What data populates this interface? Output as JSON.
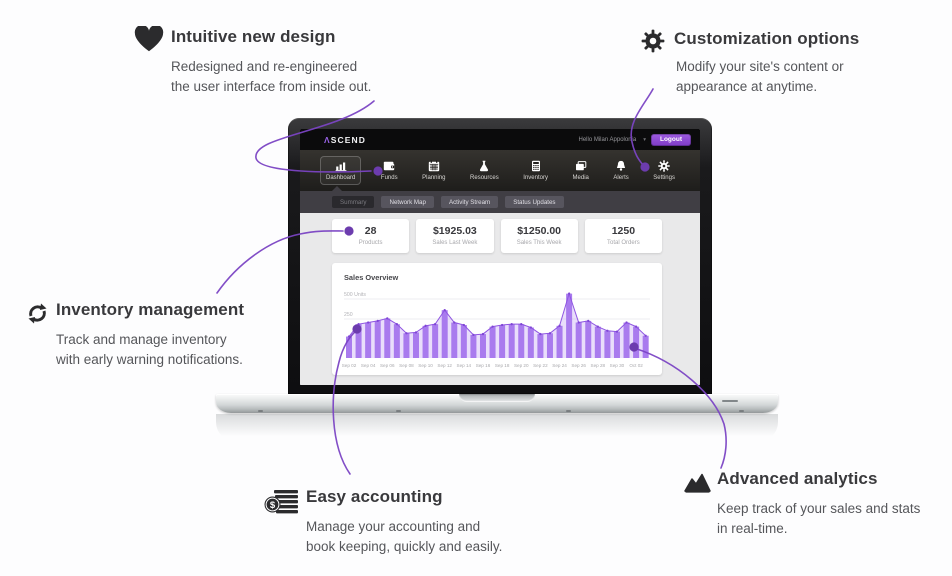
{
  "features": {
    "intuitive": {
      "title": "Intuitive new design",
      "desc": [
        "Redesigned and re-engineered",
        "the user interface from inside out."
      ]
    },
    "customization": {
      "title": "Customization options",
      "desc": [
        "Modify your site's content or",
        "appearance at anytime."
      ]
    },
    "inventory": {
      "title": "Inventory management",
      "desc": [
        "Track and manage inventory",
        "with early warning notifications."
      ]
    },
    "accounting": {
      "title": "Easy accounting",
      "desc": [
        "Manage your accounting and",
        "book keeping, quickly and easily."
      ],
      "icon_symbol": "$"
    },
    "analytics": {
      "title": "Advanced analytics",
      "desc": [
        "Keep track of your sales and stats",
        "in real-time."
      ]
    }
  },
  "dashboard": {
    "logo": {
      "prefix": "Λ",
      "rest": "SCEND"
    },
    "user": {
      "greeting": "Hello Milan Appolonia",
      "caret": "▾",
      "logout_label": "Logout"
    },
    "nav": [
      {
        "label": "Dashboard",
        "icon": "bar-chart",
        "active": true
      },
      {
        "label": "Funds",
        "icon": "wallet",
        "active": false
      },
      {
        "label": "Planning",
        "icon": "calendar",
        "active": false
      },
      {
        "label": "Resources",
        "icon": "flask",
        "active": false
      },
      {
        "label": "Inventory",
        "icon": "calculator",
        "active": false
      },
      {
        "label": "Media",
        "icon": "photos",
        "active": false
      },
      {
        "label": "Alerts",
        "icon": "bell",
        "active": false
      },
      {
        "label": "Settings",
        "icon": "gear",
        "active": false
      }
    ],
    "tabs": [
      {
        "label": "Summary",
        "active": true
      },
      {
        "label": "Network Map",
        "active": false
      },
      {
        "label": "Activity Stream",
        "active": false
      },
      {
        "label": "Status Updates",
        "active": false
      }
    ],
    "stats": [
      {
        "value": "28",
        "label": "Products"
      },
      {
        "value": "$1925.03",
        "label": "Sales Last Week"
      },
      {
        "value": "$1250.00",
        "label": "Sales This Week"
      },
      {
        "value": "1250",
        "label": "Total Orders"
      }
    ]
  },
  "chart_data": {
    "type": "bar",
    "title": "Sales Overview",
    "ylabel": "Units",
    "ylim": [
      0,
      500
    ],
    "y_ticks": [
      "500 Units",
      "250"
    ],
    "x_labels": [
      "Sep 02",
      "Sep 04",
      "Sep 06",
      "Sep 08",
      "Sep 10",
      "Sep 12",
      "Sep 14",
      "Sep 16",
      "Sep 18",
      "Sep 20",
      "Sep 22",
      "Sep 24",
      "Sep 26",
      "Sep 28",
      "Sep 30",
      "Oct 02"
    ],
    "values": [
      130,
      205,
      215,
      225,
      240,
      205,
      150,
      155,
      195,
      205,
      290,
      215,
      200,
      140,
      145,
      190,
      200,
      205,
      205,
      185,
      145,
      150,
      195,
      390,
      215,
      225,
      190,
      165,
      160,
      215,
      190,
      135
    ],
    "legend": [],
    "grid": true
  },
  "colors": {
    "accent_line": "#7b44c4",
    "accent_dot": "#6c3cae",
    "bar_fill": "#a97bee",
    "chart_line": "#8f55e2",
    "logout_bg": "#8e4ad2",
    "logo_lambda": "#9a63e8",
    "icon_dark": "#2b2b2d"
  }
}
